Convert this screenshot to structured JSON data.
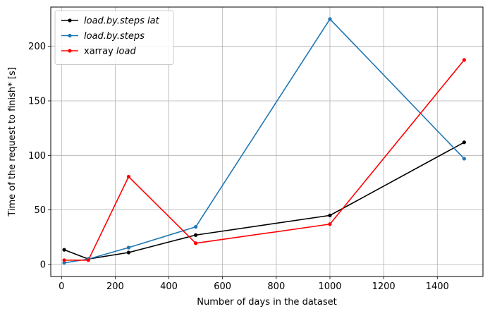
{
  "chart_data": {
    "type": "line",
    "xlabel": "Number of days in the dataset",
    "ylabel": "Time of the request to finish* [s]",
    "xlim": [
      -40,
      1570
    ],
    "ylim": [
      -11,
      236
    ],
    "xticks": [
      0,
      200,
      400,
      600,
      800,
      1000,
      1200,
      1400
    ],
    "yticks": [
      0,
      50,
      100,
      150,
      200
    ],
    "grid": true,
    "legend_position": "top-left",
    "series": [
      {
        "name": "load.by.steps lat",
        "name_italic": "load.by.steps lat",
        "name_prefix": "",
        "color": "#000000",
        "x": [
          10,
          100,
          250,
          500,
          1000,
          1500
        ],
        "y": [
          13.5,
          5,
          11,
          27,
          45,
          112
        ]
      },
      {
        "name": "load.by.steps",
        "name_italic": "load.by.steps",
        "name_prefix": "",
        "color": "#1f77b4",
        "x": [
          10,
          100,
          250,
          500,
          1000,
          1500
        ],
        "y": [
          1.5,
          5,
          15.5,
          34.5,
          225,
          97
        ]
      },
      {
        "name": "xarray load",
        "name_italic": "load",
        "name_prefix": "xarray ",
        "color": "#ff0000",
        "x": [
          10,
          100,
          250,
          500,
          1000,
          1500
        ],
        "y": [
          4,
          4,
          80.5,
          19.5,
          37,
          187.5
        ]
      }
    ]
  }
}
